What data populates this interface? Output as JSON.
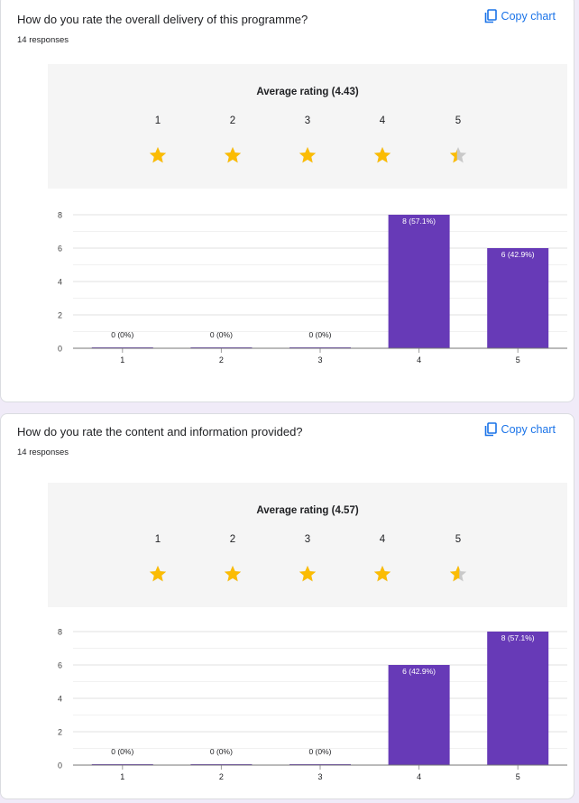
{
  "copy_chart_label": "Copy chart",
  "colors": {
    "bar": "#673ab7",
    "star_filled": "#fbbc04",
    "star_empty": "#c9c9c9",
    "link": "#1a73e8"
  },
  "questions": [
    {
      "title": "How do you rate the overall delivery of this programme?",
      "responses": "14 responses",
      "average_rating": "Average rating (4.43)",
      "scale": [
        "1",
        "2",
        "3",
        "4",
        "5"
      ],
      "star_fill": [
        1,
        1,
        1,
        1,
        0.43
      ],
      "chart_data": {
        "type": "bar",
        "categories": [
          "1",
          "2",
          "3",
          "4",
          "5"
        ],
        "values": [
          0,
          0,
          0,
          8,
          6
        ],
        "data_labels": [
          "0 (0%)",
          "0 (0%)",
          "0 (0%)",
          "8 (57.1%)",
          "6 (42.9%)"
        ],
        "yticks": [
          "0",
          "2",
          "4",
          "6",
          "8"
        ],
        "ylim": [
          0,
          8
        ],
        "grid": true
      }
    },
    {
      "title": "How do you rate the content and information provided?",
      "responses": "14 responses",
      "average_rating": "Average rating (4.57)",
      "scale": [
        "1",
        "2",
        "3",
        "4",
        "5"
      ],
      "star_fill": [
        1,
        1,
        1,
        1,
        0.57
      ],
      "chart_data": {
        "type": "bar",
        "categories": [
          "1",
          "2",
          "3",
          "4",
          "5"
        ],
        "values": [
          0,
          0,
          0,
          6,
          8
        ],
        "data_labels": [
          "0 (0%)",
          "0 (0%)",
          "0 (0%)",
          "6 (42.9%)",
          "8 (57.1%)"
        ],
        "yticks": [
          "0",
          "2",
          "4",
          "6",
          "8"
        ],
        "ylim": [
          0,
          8
        ],
        "grid": true
      }
    }
  ]
}
